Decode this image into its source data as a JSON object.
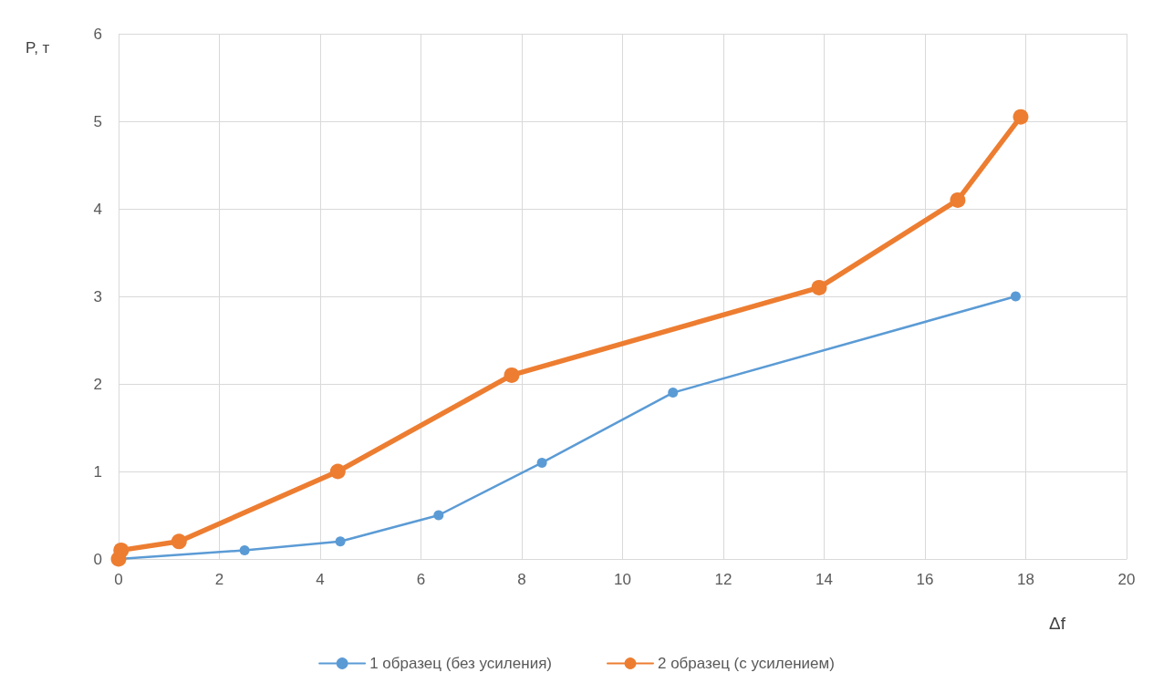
{
  "chart_data": {
    "type": "line",
    "xlabel": "Δf",
    "ylabel": "P, т",
    "xlim": [
      0,
      20
    ],
    "xticks": [
      0,
      2,
      4,
      6,
      8,
      10,
      12,
      14,
      16,
      18,
      20
    ],
    "ylim": [
      0,
      6
    ],
    "yticks": [
      0,
      1,
      2,
      3,
      4,
      5,
      6
    ],
    "grid": true,
    "legend": "bottom",
    "marker": "circle",
    "line_style": "solid",
    "series": [
      {
        "name": "1 образец (без усиления)",
        "color": "#5b9bd5",
        "x": [
          0,
          2.5,
          4.4,
          6.35,
          8.4,
          11.0,
          17.8
        ],
        "values": [
          0,
          0.1,
          0.2,
          0.5,
          1.1,
          1.9,
          3.0
        ]
      },
      {
        "name": "2 образец (с усилением)",
        "color": "#ed7d31",
        "x": [
          0,
          0.05,
          1.2,
          4.35,
          7.8,
          13.9,
          16.65,
          17.9
        ],
        "values": [
          0,
          0.1,
          0.2,
          1.0,
          2.1,
          3.1,
          4.1,
          5.05
        ]
      }
    ]
  }
}
